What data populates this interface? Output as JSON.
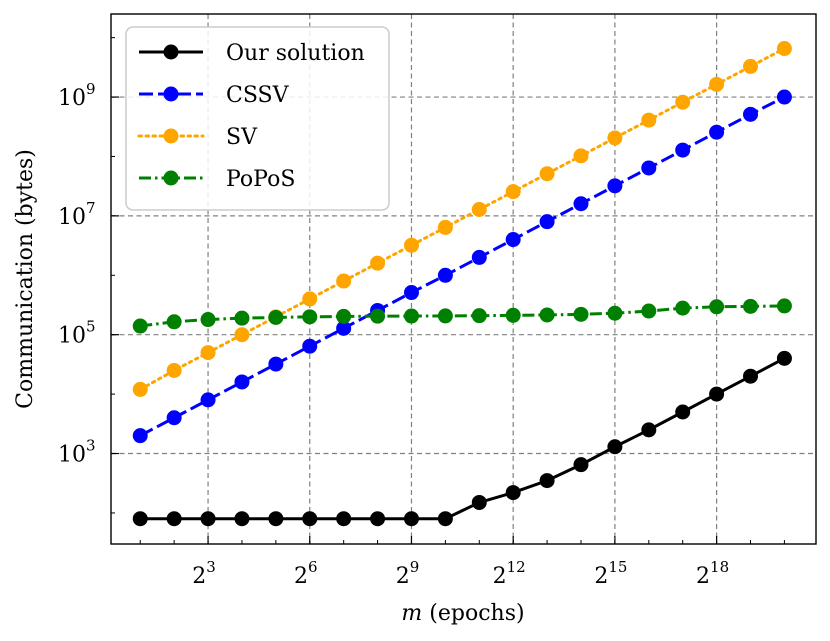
{
  "chart_data": {
    "type": "line",
    "xlabel_var": "m",
    "xlabel_rest": " (epochs)",
    "ylabel": "Communication (bytes)",
    "x_scale": "log2",
    "y_scale": "log10",
    "x": [
      2,
      4,
      8,
      16,
      32,
      64,
      128,
      256,
      512,
      1024,
      2048,
      4096,
      8192,
      16384,
      32768,
      65536,
      131072,
      262144,
      524288,
      1048576
    ],
    "xticks": [
      {
        "base": "2",
        "exp": "3",
        "value": 8
      },
      {
        "base": "2",
        "exp": "6",
        "value": 64
      },
      {
        "base": "2",
        "exp": "9",
        "value": 512
      },
      {
        "base": "2",
        "exp": "12",
        "value": 4096
      },
      {
        "base": "2",
        "exp": "15",
        "value": 32768
      },
      {
        "base": "2",
        "exp": "18",
        "value": 262144
      }
    ],
    "yticks": [
      {
        "base": "10",
        "exp": "3",
        "value": 1000
      },
      {
        "base": "10",
        "exp": "5",
        "value": 100000
      },
      {
        "base": "10",
        "exp": "7",
        "value": 10000000
      },
      {
        "base": "10",
        "exp": "9",
        "value": 1000000000
      }
    ],
    "xlim": [
      1.1,
      2000000
    ],
    "ylim": [
      30,
      25000000000
    ],
    "grid": true,
    "legend_position": "top-left",
    "series": [
      {
        "name": "Our solution",
        "color": "#000000",
        "dash": "solid",
        "values": [
          80,
          80,
          80,
          80,
          80,
          80,
          80,
          80,
          80,
          80,
          150,
          220,
          350,
          650,
          1300,
          2500,
          5000,
          10000,
          20000,
          40000
        ]
      },
      {
        "name": "CSSV",
        "color": "#0000ff",
        "dash": "dashed",
        "values": [
          2000,
          4000,
          8000,
          16000,
          32000,
          64000,
          128000,
          256000,
          512000,
          1000000,
          2000000,
          4000000,
          8000000,
          16000000,
          32000000,
          64000000,
          128000000,
          256000000,
          512000000,
          1000000000
        ]
      },
      {
        "name": "SV",
        "color": "#ffa500",
        "dash": "dotted",
        "values": [
          12000,
          25000,
          50000,
          100000,
          200000,
          400000,
          800000,
          1600000,
          3200000,
          6400000,
          12800000,
          25600000,
          51200000,
          102400000,
          204800000,
          409600000,
          819200000,
          1638400000,
          3276800000,
          6553600000
        ]
      },
      {
        "name": "PoPoS",
        "color": "#008000",
        "dash": "dashdot",
        "values": [
          140000,
          165000,
          180000,
          190000,
          195000,
          200000,
          203000,
          205000,
          206000,
          207000,
          209000,
          212000,
          215000,
          220000,
          230000,
          250000,
          280000,
          295000,
          300000,
          305000
        ]
      }
    ]
  }
}
